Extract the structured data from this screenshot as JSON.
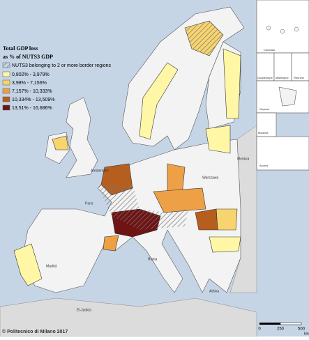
{
  "legend": {
    "title": [
      "Total GDP loss",
      "as % of NUTS3 GDP"
    ],
    "hatch_label": "NUTS3 belonging to 2 or more border regions",
    "classes": [
      {
        "label": "0,802% - 3,979%",
        "color": "#fff7a6"
      },
      {
        "label": "3,98% - 7,156%",
        "color": "#f7d46e"
      },
      {
        "label": "7,157% - 10,333%",
        "color": "#eda046"
      },
      {
        "label": "10,334% - 13,509%",
        "color": "#b65e1e"
      },
      {
        "label": "13,51% - 16,686%",
        "color": "#6e1414"
      }
    ]
  },
  "insets": [
    "Canarias",
    "Guadeloupe",
    "Martinique",
    "Réunion",
    "Guyane",
    "Madeira",
    "Açores"
  ],
  "cities": [
    "Madrid",
    "Paris",
    "Amsterdam",
    "Roma",
    "Warszawa",
    "Moskva",
    "Athina",
    "El-Jadida"
  ],
  "scale": {
    "ticks": [
      "0",
      "250",
      "500"
    ],
    "unit": "km"
  },
  "credit": "© Politecnico di Milano 2017"
}
